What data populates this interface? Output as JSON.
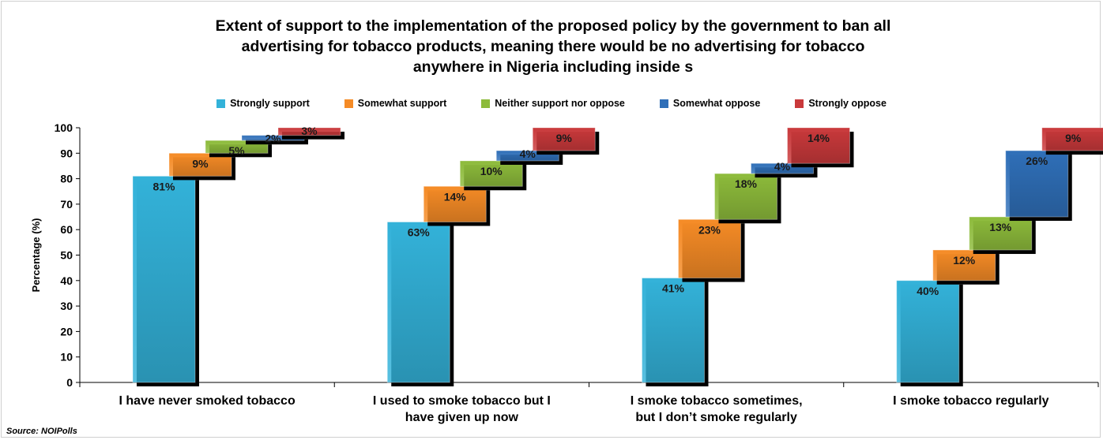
{
  "chart_data": {
    "type": "bar",
    "stacked": true,
    "title_lines": [
      "Extent of support to the implementation of the  proposed policy by the government to ban all",
      "advertising for tobacco products, meaning there would be no advertising for tobacco",
      "anywhere in Nigeria including inside s"
    ],
    "ylabel": "Percentage (%)",
    "xlabel": "",
    "ylim": [
      0,
      100
    ],
    "yticks": [
      "0",
      "10",
      "20",
      "30",
      "40",
      "50",
      "60",
      "70",
      "80",
      "90",
      "100"
    ],
    "categories": [
      [
        "I have never smoked tobacco"
      ],
      [
        "I used to smoke tobacco but I",
        "have given up now"
      ],
      [
        "I smoke tobacco sometimes,",
        "but I don’t smoke regularly"
      ],
      [
        "I smoke tobacco regularly"
      ]
    ],
    "series": [
      {
        "name": "Strongly support",
        "color": "#33b2d9",
        "values": [
          81,
          63,
          41,
          40
        ],
        "labels": [
          "81%",
          "63%",
          "41%",
          "40%"
        ]
      },
      {
        "name": "Somewhat support",
        "color": "#f58b26",
        "values": [
          9,
          14,
          23,
          12
        ],
        "labels": [
          "9%",
          "14%",
          "23%",
          "12%"
        ]
      },
      {
        "name": "Neither support nor oppose",
        "color": "#8dbb3b",
        "values": [
          5,
          10,
          18,
          13
        ],
        "labels": [
          "5%",
          "10%",
          "18%",
          "13%"
        ]
      },
      {
        "name": "Somewhat oppose",
        "color": "#2f6fb8",
        "values": [
          2,
          4,
          4,
          26
        ],
        "labels": [
          "2%",
          "4%",
          "4%",
          "26%"
        ]
      },
      {
        "name": "Strongly oppose",
        "color": "#c9393b",
        "values": [
          3,
          9,
          14,
          9
        ],
        "labels": [
          "3%",
          "9%",
          "14%",
          "9%"
        ]
      }
    ],
    "legend_position": "top",
    "grid": false
  },
  "source": "Source: NOIPolls"
}
